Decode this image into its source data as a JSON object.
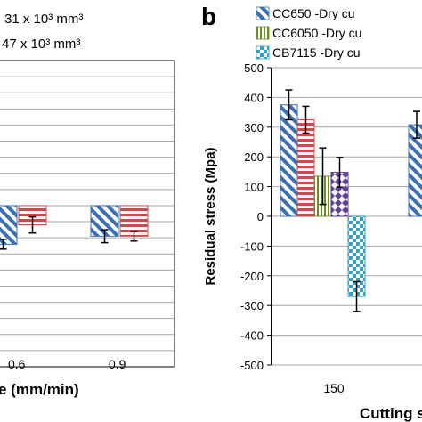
{
  "panel_a": {
    "legend_lines": [
      "31 x 10³ mm³",
      "47 x 10³ mm³"
    ],
    "xlabel_visible": "e (mm/min)",
    "x_ticks": [
      "0.6",
      "0.9"
    ],
    "chart_data": {
      "type": "bar",
      "categories": [
        "0.6",
        "0.9"
      ],
      "series": [
        {
          "name": "31 x 10³ mm³",
          "values": [
            -120,
            -95
          ],
          "errors": [
            15,
            20
          ]
        },
        {
          "name": "47 x 10³ mm³",
          "values": [
            -60,
            -95
          ],
          "errors": [
            25,
            15
          ]
        }
      ],
      "xlabel": "e (mm/min)",
      "ylim": [
        -500,
        450
      ]
    }
  },
  "panel_b": {
    "panel_label": "b",
    "ylabel": "Residual stress (Mpa)",
    "xlabel_visible": "Cutting s",
    "legend": [
      "CC650 -Dry cu",
      "CC6050 -Dry cu",
      "CB7115 -Dry cu"
    ],
    "y_ticks": [
      "500",
      "400",
      "300",
      "200",
      "100",
      "0",
      "-100",
      "-200",
      "-300",
      "-400",
      "-500"
    ],
    "x_ticks": [
      "150"
    ],
    "colors": {
      "blue": "#3a6fb5",
      "red": "#c0504d",
      "green": "#6b8e23",
      "purple": "#5b3f94",
      "teal": "#31a2c4"
    },
    "chart_data": {
      "type": "bar",
      "categories": [
        "150"
      ],
      "series": [
        {
          "name": "CC650 -Dry cu",
          "values": [
            375
          ],
          "errors": [
            50
          ]
        },
        {
          "name": "",
          "values": [
            325
          ],
          "errors": [
            45
          ]
        },
        {
          "name": "CC6050 -Dry cu",
          "values": [
            135
          ],
          "errors": [
            95
          ]
        },
        {
          "name": "",
          "values": [
            148
          ],
          "errors": [
            50
          ]
        },
        {
          "name": "CB7115 -Dry cu",
          "values": [
            -270
          ],
          "errors": [
            50
          ]
        }
      ],
      "partial_bar_next_category": {
        "value": 308,
        "error": 45
      },
      "ylabel": "Residual stress (Mpa)",
      "xlabel": "Cutting s",
      "ylim": [
        -500,
        500
      ],
      "grid": true
    }
  }
}
